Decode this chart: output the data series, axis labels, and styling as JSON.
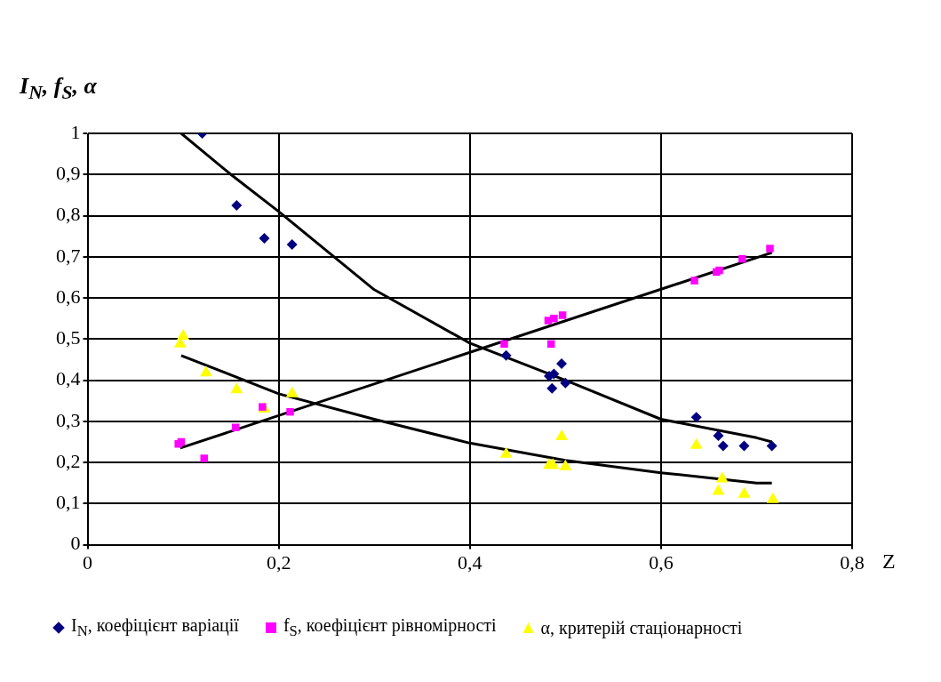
{
  "chart_data": {
    "type": "scatter",
    "ylabel": "I$_{N}$, f$_{S}$, α",
    "xlabel": "Z",
    "xlim": [
      0,
      0.8
    ],
    "xticks": [
      {
        "value": 0,
        "label": "0"
      },
      {
        "value": 0.2,
        "label": "0,2"
      },
      {
        "value": 0.4,
        "label": "0,4"
      },
      {
        "value": 0.6,
        "label": "0,6"
      },
      {
        "value": 0.8,
        "label": "0,8"
      }
    ],
    "ylim": [
      0,
      1
    ],
    "yticks": [
      {
        "value": 0,
        "label": "0"
      },
      {
        "value": 0.1,
        "label": "0,1"
      },
      {
        "value": 0.2,
        "label": "0,2"
      },
      {
        "value": 0.3,
        "label": "0,3"
      },
      {
        "value": 0.4,
        "label": "0,4"
      },
      {
        "value": 0.5,
        "label": "0,5"
      },
      {
        "value": 0.6,
        "label": "0,6"
      },
      {
        "value": 0.7,
        "label": "0,7"
      },
      {
        "value": 0.8,
        "label": "0,8"
      },
      {
        "value": 0.9,
        "label": "0,9"
      },
      {
        "value": 1,
        "label": "1"
      }
    ],
    "grid": true,
    "legend": "bottom",
    "series": [
      {
        "name": "I$_{N}$, коефіцієнт варіації",
        "color": "#000080",
        "marker": "diamond",
        "x": [
          0.12,
          0.156,
          0.185,
          0.214,
          0.438,
          0.483,
          0.488,
          0.496,
          0.5,
          0.486,
          0.637,
          0.66,
          0.665,
          0.687,
          0.716
        ],
        "values": [
          1.0,
          0.825,
          0.745,
          0.73,
          0.46,
          0.41,
          0.415,
          0.44,
          0.393,
          0.38,
          0.31,
          0.265,
          0.24,
          0.24,
          0.24
        ]
      },
      {
        "name": "f$_{S}$, коефіцієнт рівномірності",
        "color": "#ff00ff",
        "marker": "square",
        "x": [
          0.095,
          0.098,
          0.122,
          0.155,
          0.183,
          0.212,
          0.436,
          0.482,
          0.488,
          0.497,
          0.485,
          0.635,
          0.658,
          0.661,
          0.685,
          0.714
        ],
        "values": [
          0.245,
          0.25,
          0.21,
          0.285,
          0.335,
          0.323,
          0.488,
          0.545,
          0.55,
          0.558,
          0.488,
          0.642,
          0.663,
          0.667,
          0.695,
          0.72
        ]
      },
      {
        "name": "α, критерій стаціонарності",
        "color": "#ffff00",
        "marker": "triangle",
        "x": [
          0.097,
          0.1,
          0.124,
          0.156,
          0.185,
          0.214,
          0.438,
          0.483,
          0.487,
          0.5,
          0.496,
          0.637,
          0.664,
          0.66,
          0.687,
          0.717
        ],
        "values": [
          0.488,
          0.507,
          0.418,
          0.377,
          0.33,
          0.367,
          0.22,
          0.193,
          0.193,
          0.19,
          0.263,
          0.242,
          0.16,
          0.13,
          0.123,
          0.11
        ]
      },
      {
        "type": "line",
        "color": "#000000",
        "x": [
          0.098,
          0.15,
          0.2,
          0.3,
          0.4,
          0.5,
          0.6,
          0.7,
          0.716
        ],
        "values": [
          1.0,
          0.9,
          0.81,
          0.62,
          0.49,
          0.4,
          0.305,
          0.26,
          0.25
        ]
      },
      {
        "type": "line",
        "color": "#000000",
        "x": [
          0.097,
          0.716
        ],
        "values": [
          0.235,
          0.71
        ]
      },
      {
        "type": "line",
        "color": "#000000",
        "x": [
          0.098,
          0.2,
          0.3,
          0.4,
          0.5,
          0.6,
          0.7,
          0.716
        ],
        "values": [
          0.46,
          0.367,
          0.305,
          0.247,
          0.205,
          0.175,
          0.15,
          0.15
        ]
      }
    ]
  }
}
